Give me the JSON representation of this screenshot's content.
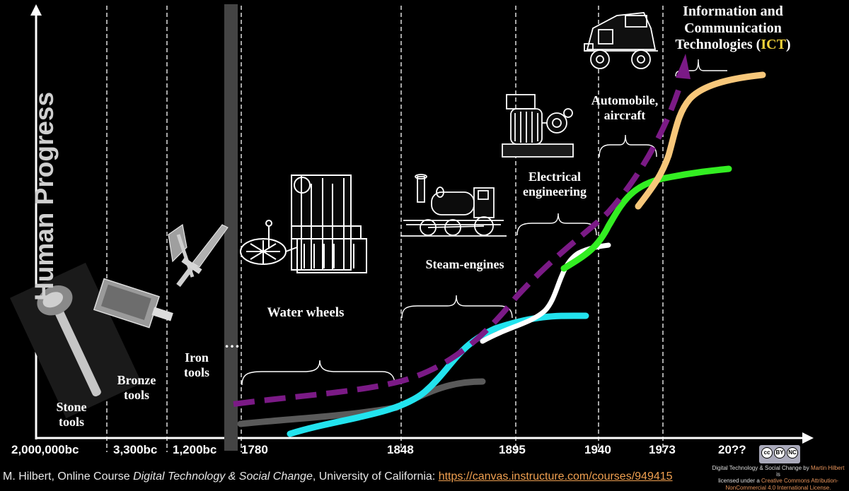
{
  "y_axis_label": "Human Progress",
  "x_ticks": [
    "2,000,000bc",
    "3,300bc",
    "1,200bc",
    "1780",
    "1848",
    "1895",
    "1940",
    "1973",
    "20??"
  ],
  "ellipsis": "…",
  "eras": {
    "stone": [
      "Stone",
      "tools"
    ],
    "bronze": [
      "Bronze",
      "tools"
    ],
    "iron": [
      "Iron",
      "tools"
    ],
    "water": "Water wheels",
    "steam": "Steam-engines",
    "electrical": [
      "Electrical",
      "engineering"
    ],
    "automobile": [
      "Automobile,",
      "aircraft"
    ],
    "ict": [
      "Information and",
      "Communication",
      "Technologies ("
    ],
    "ict_abbrev": "ICT",
    "ict_close": ")"
  },
  "footer": {
    "prefix": "M. Hilbert, Online Course ",
    "course": "Digital Technology & Social Change",
    "mid": ", University of California: ",
    "link": "https://canvas.instructure.com/courses/949415"
  },
  "license": {
    "l1a": "Digital Technology & Social Change by ",
    "l1b": "Martin Hilbert",
    "l1c": " is",
    "l2a": "licensed under a ",
    "l2b": "Creative Commons Attribution-",
    "l3": "NonCommercial 4.0 International License.",
    "badge": [
      "cc",
      "BY",
      "NC"
    ]
  },
  "colors": {
    "background": "#000000",
    "dashed_trend": "#7b1a86",
    "gray_wave": "#5a5a5a",
    "cyan_wave": "#22e3ee",
    "white_wave": "#ffffff",
    "green_wave": "#33ee22",
    "orange_wave": "#f7c77a",
    "ict_highlight": "#f3d23a"
  },
  "icons": [
    "stone-axe-icon",
    "bronze-chisel-icon",
    "iron-axe-icon",
    "iron-sword-icon",
    "spinning-frame-icon",
    "steam-locomotive-icon",
    "electric-generator-icon",
    "vintage-car-icon"
  ]
}
